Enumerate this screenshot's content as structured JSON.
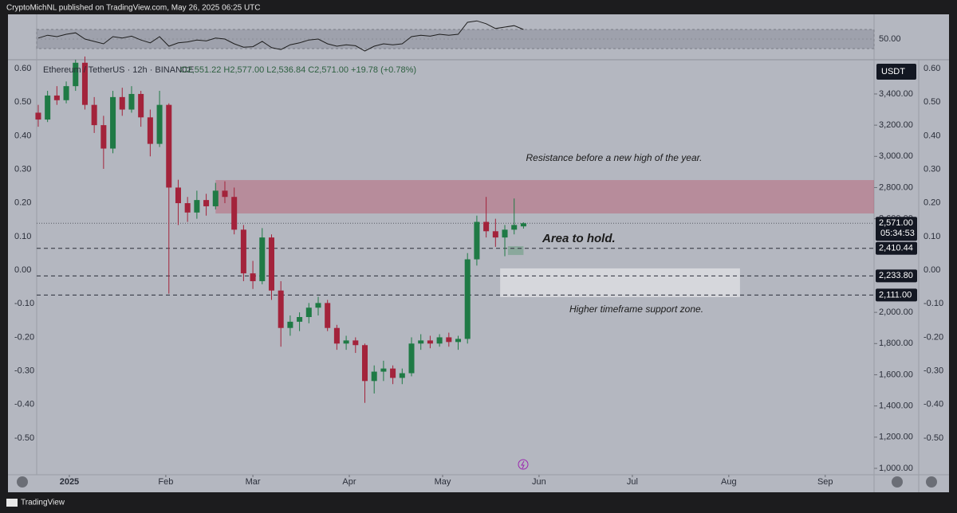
{
  "header": "CryptoMichNL published on TradingView.com, May 26, 2025 06:25 UTC",
  "brand": "TradingView",
  "chart_data": {
    "type": "candlestick",
    "legend_symbol": "Ethereum / TetherUS · 12h · BINANCE",
    "legend_ohlc": "O2,551.22 H2,577.00 L2,536.84 C2,571.00 +19.78 (+0.78%)",
    "currency": "USDT",
    "up_color": "#1f7a45",
    "down_color": "#a3233b",
    "x": [
      -10,
      -7,
      -4,
      -1,
      2,
      5,
      8,
      11,
      14,
      17,
      20,
      23,
      26,
      29,
      32,
      35,
      38,
      41,
      44,
      47,
      50,
      53,
      56,
      59,
      62,
      65,
      68,
      71,
      74,
      77,
      80,
      83,
      86,
      89,
      92,
      95,
      98,
      101,
      104,
      107,
      110,
      113,
      116,
      119,
      122,
      125,
      128,
      131,
      134,
      137,
      140,
      143,
      146
    ],
    "open": [
      3280,
      3236,
      3390,
      3360,
      3450,
      3600,
      3330,
      3200,
      3050,
      3380,
      3300,
      3400,
      3250,
      3080,
      3330,
      2800,
      2700,
      2640,
      2720,
      2680,
      2780,
      2740,
      2530,
      2250,
      2200,
      2480,
      2140,
      1900,
      1940,
      1970,
      2030,
      2060,
      1900,
      1800,
      1820,
      1790,
      1560,
      1620,
      1640,
      1580,
      1610,
      1800,
      1820,
      1800,
      1840,
      1810,
      1830,
      2340,
      2580,
      2520,
      2480,
      2530,
      2551.22
    ],
    "high": [
      3330,
      3420,
      3450,
      3480,
      3620,
      3640,
      3380,
      3260,
      3420,
      3440,
      3450,
      3420,
      3300,
      3420,
      3340,
      2850,
      2740,
      2780,
      2760,
      2830,
      2840,
      2800,
      2560,
      2330,
      2540,
      2500,
      2200,
      1980,
      2000,
      2060,
      2100,
      2080,
      1920,
      1850,
      1840,
      1800,
      1660,
      1690,
      1660,
      1640,
      1840,
      1860,
      1850,
      1860,
      1870,
      1850,
      2380,
      2620,
      2740,
      2600,
      2560,
      2730,
      2577
    ],
    "low": [
      3190,
      3220,
      3330,
      3340,
      3420,
      3300,
      3150,
      2920,
      3020,
      3260,
      3280,
      3190,
      3000,
      3060,
      2120,
      2560,
      2580,
      2600,
      2620,
      2660,
      2700,
      2500,
      2200,
      2150,
      2180,
      2080,
      1780,
      1850,
      1880,
      1930,
      1980,
      1880,
      1760,
      1760,
      1740,
      1420,
      1480,
      1560,
      1540,
      1540,
      1590,
      1760,
      1770,
      1780,
      1780,
      1760,
      1800,
      2300,
      2480,
      2420,
      2360,
      2500,
      2536.84
    ],
    "close": [
      3236,
      3390,
      3360,
      3450,
      3600,
      3330,
      3200,
      3050,
      3380,
      3300,
      3400,
      3250,
      3080,
      3330,
      2800,
      2700,
      2640,
      2720,
      2680,
      2780,
      2740,
      2530,
      2250,
      2200,
      2480,
      2140,
      1900,
      1940,
      1970,
      2030,
      2060,
      1900,
      1800,
      1820,
      1790,
      1560,
      1620,
      1640,
      1580,
      1610,
      1800,
      1820,
      1800,
      1840,
      1810,
      1830,
      2340,
      2580,
      2520,
      2480,
      2530,
      2560,
      2571
    ],
    "xlim": [
      -10.5,
      258.7
    ],
    "xticks": [
      {
        "value": 0,
        "label": "2025"
      },
      {
        "value": 31,
        "label": "Feb"
      },
      {
        "value": 59,
        "label": "Mar"
      },
      {
        "value": 90,
        "label": "Apr"
      },
      {
        "value": 120,
        "label": "May"
      },
      {
        "value": 151,
        "label": "Jun"
      },
      {
        "value": 181,
        "label": "Jul"
      },
      {
        "value": 212,
        "label": "Aug"
      },
      {
        "value": 243,
        "label": "Sep"
      }
    ],
    "ylim": [
      959,
      3604
    ],
    "yticks": [
      {
        "value": 1000,
        "label": "1,000.00"
      },
      {
        "value": 1200,
        "label": "1,200.00"
      },
      {
        "value": 1400,
        "label": "1,400.00"
      },
      {
        "value": 1600,
        "label": "1,600.00"
      },
      {
        "value": 1800,
        "label": "1,800.00"
      },
      {
        "value": 2000,
        "label": "2,000.00"
      },
      {
        "value": 2600,
        "label": "2,600.00"
      },
      {
        "value": 2800,
        "label": "2,800.00"
      },
      {
        "value": 3000,
        "label": "3,000.00"
      },
      {
        "value": 3200,
        "label": "3,200.00"
      },
      {
        "value": 3400,
        "label": "3,400.00"
      }
    ],
    "y2lim": [
      -0.609,
      0.619
    ],
    "y2ticks": [
      {
        "value": 0.6,
        "label": "0.60"
      },
      {
        "value": 0.5,
        "label": "0.50"
      },
      {
        "value": 0.4,
        "label": "0.40"
      },
      {
        "value": 0.3,
        "label": "0.30"
      },
      {
        "value": 0.2,
        "label": "0.20"
      },
      {
        "value": 0.1,
        "label": "0.10"
      },
      {
        "value": 0,
        "label": "0.00"
      },
      {
        "value": -0.1,
        "label": "-0.10"
      },
      {
        "value": -0.2,
        "label": "-0.20"
      },
      {
        "value": -0.3,
        "label": "-0.30"
      },
      {
        "value": -0.4,
        "label": "-0.40"
      },
      {
        "value": -0.5,
        "label": "-0.50"
      }
    ],
    "last_price": {
      "value": 2571,
      "label": "2,571.00",
      "countdown": "05:34:53"
    },
    "hlines": [
      {
        "value": 2410.44,
        "label": "2,410.44"
      },
      {
        "value": 2233.8,
        "label": "2,233.80"
      },
      {
        "value": 2111,
        "label": "2,111.00"
      }
    ],
    "zones": [
      {
        "ylim": [
          2634,
          2848
        ],
        "xlim": [
          47,
          258.7
        ],
        "color": "rgba(190,70,95,0.38)"
      },
      {
        "ylim": [
          2098,
          2282
        ],
        "xlim": [
          138.5,
          215.6
        ],
        "color": "rgba(255,255,255,0.45)"
      },
      {
        "ylim": [
          2368,
          2424
        ],
        "xlim": [
          141,
          146
        ],
        "color": "rgba(60,140,90,0.35)"
      }
    ],
    "annotations": [
      "Resistance before a new high of the year.",
      "Area to hold.",
      "Higher timeframe support zone."
    ],
    "rsi": [
      52,
      58,
      55,
      60,
      63,
      50,
      45,
      40,
      55,
      52,
      56,
      48,
      42,
      55,
      35,
      42,
      44,
      48,
      46,
      52,
      50,
      40,
      33,
      34,
      45,
      32,
      28,
      38,
      42,
      48,
      50,
      40,
      35,
      38,
      36,
      25,
      35,
      40,
      38,
      40,
      55,
      58,
      56,
      60,
      58,
      60,
      85,
      88,
      82,
      72,
      75,
      78,
      70
    ],
    "rsi_ylim": [
      11.7,
      95
    ],
    "rsi_band": [
      30,
      70
    ],
    "rsi_ticks": [
      {
        "value": 50,
        "label": "50.00"
      }
    ]
  }
}
